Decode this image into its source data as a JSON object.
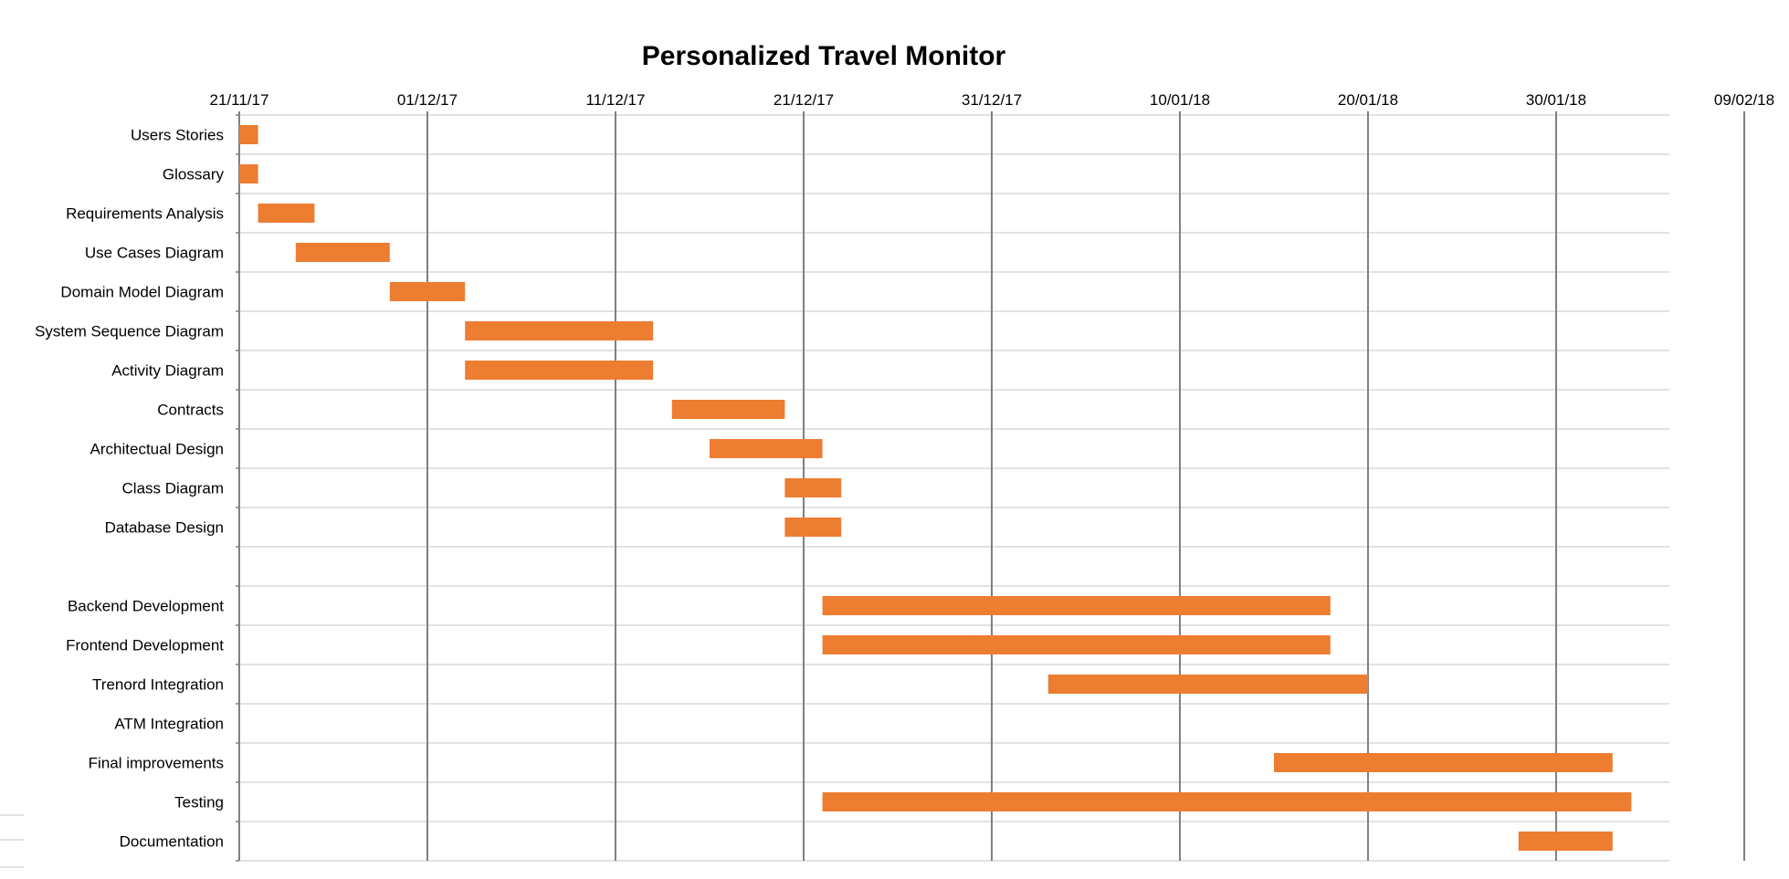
{
  "chart_data": {
    "type": "bar",
    "orientation": "horizontal-gantt",
    "title": "Personalized Travel Monitor",
    "x_axis": {
      "type": "date",
      "range": [
        "2017-11-21",
        "2018-02-09"
      ],
      "ticks": [
        {
          "date": "2017-11-21",
          "label": "21/11/17"
        },
        {
          "date": "2017-12-01",
          "label": "01/12/17"
        },
        {
          "date": "2017-12-11",
          "label": "11/12/17"
        },
        {
          "date": "2017-12-21",
          "label": "21/12/17"
        },
        {
          "date": "2017-12-31",
          "label": "31/12/17"
        },
        {
          "date": "2018-01-10",
          "label": "10/01/18"
        },
        {
          "date": "2018-01-20",
          "label": "20/01/18"
        },
        {
          "date": "2018-01-30",
          "label": "30/01/18"
        },
        {
          "date": "2018-02-09",
          "label": "09/02/18"
        }
      ],
      "position": "top",
      "vertical_gridlines": true
    },
    "horizontal_gridlines": true,
    "legend": "none",
    "bar_color": "#ED7D31",
    "gridline_color": "#D9D9D9",
    "major_gridline_color": "#808080",
    "tasks": [
      {
        "name": "Users Stories",
        "start": "2017-11-21",
        "end": "2017-11-22"
      },
      {
        "name": "Glossary",
        "start": "2017-11-21",
        "end": "2017-11-22"
      },
      {
        "name": "Requirements Analysis",
        "start": "2017-11-22",
        "end": "2017-11-25"
      },
      {
        "name": "Use Cases Diagram",
        "start": "2017-11-24",
        "end": "2017-11-29"
      },
      {
        "name": "Domain Model Diagram",
        "start": "2017-11-29",
        "end": "2017-12-03"
      },
      {
        "name": "System Sequence Diagram",
        "start": "2017-12-03",
        "end": "2017-12-13"
      },
      {
        "name": "Activity Diagram",
        "start": "2017-12-03",
        "end": "2017-12-13"
      },
      {
        "name": "Contracts",
        "start": "2017-12-14",
        "end": "2017-12-20"
      },
      {
        "name": "Architectual Design",
        "start": "2017-12-16",
        "end": "2017-12-22"
      },
      {
        "name": "Class Diagram",
        "start": "2017-12-20",
        "end": "2017-12-23"
      },
      {
        "name": "Database Design",
        "start": "2017-12-20",
        "end": "2017-12-23"
      },
      {
        "name": "",
        "start": null,
        "end": null
      },
      {
        "name": "Backend Development",
        "start": "2017-12-22",
        "end": "2018-01-18"
      },
      {
        "name": "Frontend Development",
        "start": "2017-12-22",
        "end": "2018-01-18"
      },
      {
        "name": "Trenord Integration",
        "start": "2018-01-03",
        "end": "2018-01-20"
      },
      {
        "name": "ATM Integration",
        "start": null,
        "end": null
      },
      {
        "name": "Final improvements",
        "start": "2018-01-15",
        "end": "2018-02-02"
      },
      {
        "name": "Testing",
        "start": "2017-12-22",
        "end": "2018-02-03"
      },
      {
        "name": "Documentation",
        "start": "2018-01-28",
        "end": "2018-02-02"
      }
    ]
  }
}
